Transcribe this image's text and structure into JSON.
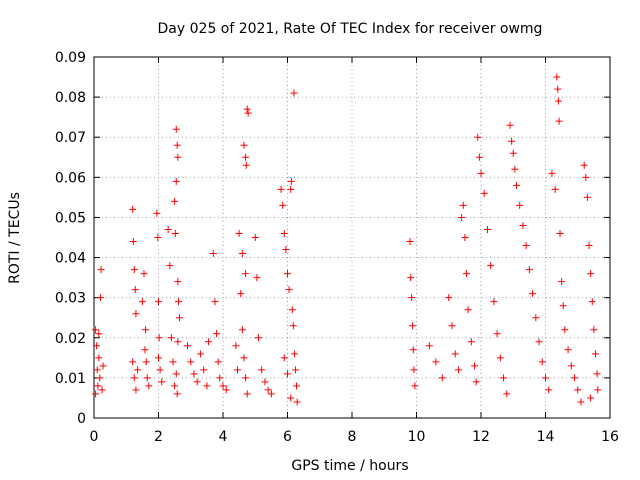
{
  "chart_data": {
    "type": "scatter",
    "title": "Day 025 of 2021, Rate Of TEC Index for receiver owmg",
    "xlabel": "GPS time / hours",
    "ylabel": "ROTI / TECUs",
    "xlim": [
      0,
      16
    ],
    "ylim": [
      0,
      0.09
    ],
    "xticks": [
      "0",
      "2",
      "4",
      "6",
      "8",
      "10",
      "12",
      "14",
      "16"
    ],
    "yticks": [
      "0",
      "0.01",
      "0.02",
      "0.03",
      "0.04",
      "0.05",
      "0.06",
      "0.07",
      "0.08",
      "0.09"
    ],
    "grid": true,
    "marker": "+",
    "color": "#ff0000",
    "series": [
      {
        "name": "ROTI",
        "points": [
          [
            0.05,
            0.022
          ],
          [
            0.08,
            0.018
          ],
          [
            0.1,
            0.012
          ],
          [
            0.12,
            0.008
          ],
          [
            0.15,
            0.015
          ],
          [
            0.18,
            0.01
          ],
          [
            0.2,
            0.03
          ],
          [
            0.22,
            0.037
          ],
          [
            0.25,
            0.007
          ],
          [
            0.28,
            0.013
          ],
          [
            0.05,
            0.006
          ],
          [
            0.15,
            0.021
          ],
          [
            1.2,
            0.052
          ],
          [
            1.22,
            0.044
          ],
          [
            1.25,
            0.037
          ],
          [
            1.28,
            0.032
          ],
          [
            1.3,
            0.026
          ],
          [
            1.2,
            0.014
          ],
          [
            1.25,
            0.01
          ],
          [
            1.3,
            0.007
          ],
          [
            1.35,
            0.012
          ],
          [
            1.5,
            0.029
          ],
          [
            1.55,
            0.036
          ],
          [
            1.6,
            0.022
          ],
          [
            1.62,
            0.014
          ],
          [
            1.65,
            0.01
          ],
          [
            1.7,
            0.008
          ],
          [
            1.58,
            0.017
          ],
          [
            1.95,
            0.051
          ],
          [
            1.98,
            0.045
          ],
          [
            2.0,
            0.029
          ],
          [
            2.02,
            0.02
          ],
          [
            2.05,
            0.012
          ],
          [
            2.1,
            0.009
          ],
          [
            2.0,
            0.015
          ],
          [
            2.3,
            0.047
          ],
          [
            2.35,
            0.038
          ],
          [
            2.4,
            0.02
          ],
          [
            2.45,
            0.014
          ],
          [
            2.5,
            0.008
          ],
          [
            2.55,
            0.072
          ],
          [
            2.58,
            0.068
          ],
          [
            2.6,
            0.065
          ],
          [
            2.55,
            0.059
          ],
          [
            2.5,
            0.054
          ],
          [
            2.52,
            0.046
          ],
          [
            2.6,
            0.034
          ],
          [
            2.62,
            0.029
          ],
          [
            2.65,
            0.025
          ],
          [
            2.6,
            0.019
          ],
          [
            2.55,
            0.011
          ],
          [
            2.58,
            0.006
          ],
          [
            2.9,
            0.018
          ],
          [
            3.0,
            0.014
          ],
          [
            3.1,
            0.011
          ],
          [
            3.2,
            0.009
          ],
          [
            3.3,
            0.016
          ],
          [
            3.4,
            0.012
          ],
          [
            3.5,
            0.008
          ],
          [
            3.55,
            0.019
          ],
          [
            3.7,
            0.041
          ],
          [
            3.75,
            0.029
          ],
          [
            3.8,
            0.021
          ],
          [
            3.85,
            0.014
          ],
          [
            3.9,
            0.01
          ],
          [
            4.0,
            0.008
          ],
          [
            4.1,
            0.007
          ],
          [
            4.5,
            0.046
          ],
          [
            4.6,
            0.041
          ],
          [
            4.65,
            0.068
          ],
          [
            4.7,
            0.065
          ],
          [
            4.72,
            0.063
          ],
          [
            4.75,
            0.077
          ],
          [
            4.78,
            0.076
          ],
          [
            4.7,
            0.036
          ],
          [
            4.55,
            0.031
          ],
          [
            4.6,
            0.022
          ],
          [
            4.65,
            0.015
          ],
          [
            4.7,
            0.01
          ],
          [
            4.75,
            0.006
          ],
          [
            4.4,
            0.018
          ],
          [
            4.45,
            0.012
          ],
          [
            5.0,
            0.045
          ],
          [
            5.05,
            0.035
          ],
          [
            5.1,
            0.02
          ],
          [
            5.2,
            0.012
          ],
          [
            5.3,
            0.009
          ],
          [
            5.4,
            0.007
          ],
          [
            5.5,
            0.006
          ],
          [
            5.8,
            0.057
          ],
          [
            5.85,
            0.053
          ],
          [
            5.9,
            0.046
          ],
          [
            5.95,
            0.042
          ],
          [
            6.0,
            0.036
          ],
          [
            6.05,
            0.032
          ],
          [
            6.1,
            0.057
          ],
          [
            6.12,
            0.059
          ],
          [
            6.15,
            0.027
          ],
          [
            6.18,
            0.023
          ],
          [
            6.2,
            0.081
          ],
          [
            6.22,
            0.016
          ],
          [
            6.25,
            0.012
          ],
          [
            6.28,
            0.008
          ],
          [
            6.3,
            0.004
          ],
          [
            5.9,
            0.015
          ],
          [
            6.0,
            0.011
          ],
          [
            6.1,
            0.005
          ],
          [
            9.8,
            0.044
          ],
          [
            9.82,
            0.035
          ],
          [
            9.85,
            0.03
          ],
          [
            9.88,
            0.023
          ],
          [
            9.9,
            0.017
          ],
          [
            9.92,
            0.012
          ],
          [
            9.95,
            0.008
          ],
          [
            10.4,
            0.018
          ],
          [
            10.6,
            0.014
          ],
          [
            10.8,
            0.01
          ],
          [
            11.0,
            0.03
          ],
          [
            11.1,
            0.023
          ],
          [
            11.2,
            0.016
          ],
          [
            11.3,
            0.012
          ],
          [
            11.4,
            0.05
          ],
          [
            11.45,
            0.053
          ],
          [
            11.5,
            0.045
          ],
          [
            11.55,
            0.036
          ],
          [
            11.6,
            0.027
          ],
          [
            11.7,
            0.019
          ],
          [
            11.8,
            0.013
          ],
          [
            11.85,
            0.009
          ],
          [
            11.9,
            0.07
          ],
          [
            11.95,
            0.065
          ],
          [
            12.0,
            0.061
          ],
          [
            12.1,
            0.056
          ],
          [
            12.2,
            0.047
          ],
          [
            12.3,
            0.038
          ],
          [
            12.4,
            0.029
          ],
          [
            12.5,
            0.021
          ],
          [
            12.6,
            0.015
          ],
          [
            12.7,
            0.01
          ],
          [
            12.8,
            0.006
          ],
          [
            12.9,
            0.073
          ],
          [
            12.95,
            0.069
          ],
          [
            13.0,
            0.066
          ],
          [
            13.05,
            0.062
          ],
          [
            13.1,
            0.058
          ],
          [
            13.2,
            0.053
          ],
          [
            13.3,
            0.048
          ],
          [
            13.4,
            0.043
          ],
          [
            13.5,
            0.037
          ],
          [
            13.6,
            0.031
          ],
          [
            13.7,
            0.025
          ],
          [
            13.8,
            0.019
          ],
          [
            13.9,
            0.014
          ],
          [
            14.0,
            0.01
          ],
          [
            14.1,
            0.007
          ],
          [
            14.2,
            0.061
          ],
          [
            14.3,
            0.057
          ],
          [
            14.35,
            0.085
          ],
          [
            14.38,
            0.082
          ],
          [
            14.4,
            0.079
          ],
          [
            14.42,
            0.074
          ],
          [
            14.45,
            0.046
          ],
          [
            14.5,
            0.034
          ],
          [
            14.55,
            0.028
          ],
          [
            14.6,
            0.022
          ],
          [
            14.7,
            0.017
          ],
          [
            14.8,
            0.013
          ],
          [
            14.9,
            0.01
          ],
          [
            15.0,
            0.007
          ],
          [
            15.1,
            0.004
          ],
          [
            15.2,
            0.063
          ],
          [
            15.25,
            0.06
          ],
          [
            15.3,
            0.055
          ],
          [
            15.35,
            0.043
          ],
          [
            15.4,
            0.036
          ],
          [
            15.45,
            0.029
          ],
          [
            15.5,
            0.022
          ],
          [
            15.55,
            0.016
          ],
          [
            15.6,
            0.011
          ],
          [
            15.62,
            0.007
          ],
          [
            15.4,
            0.005
          ]
        ]
      }
    ]
  }
}
